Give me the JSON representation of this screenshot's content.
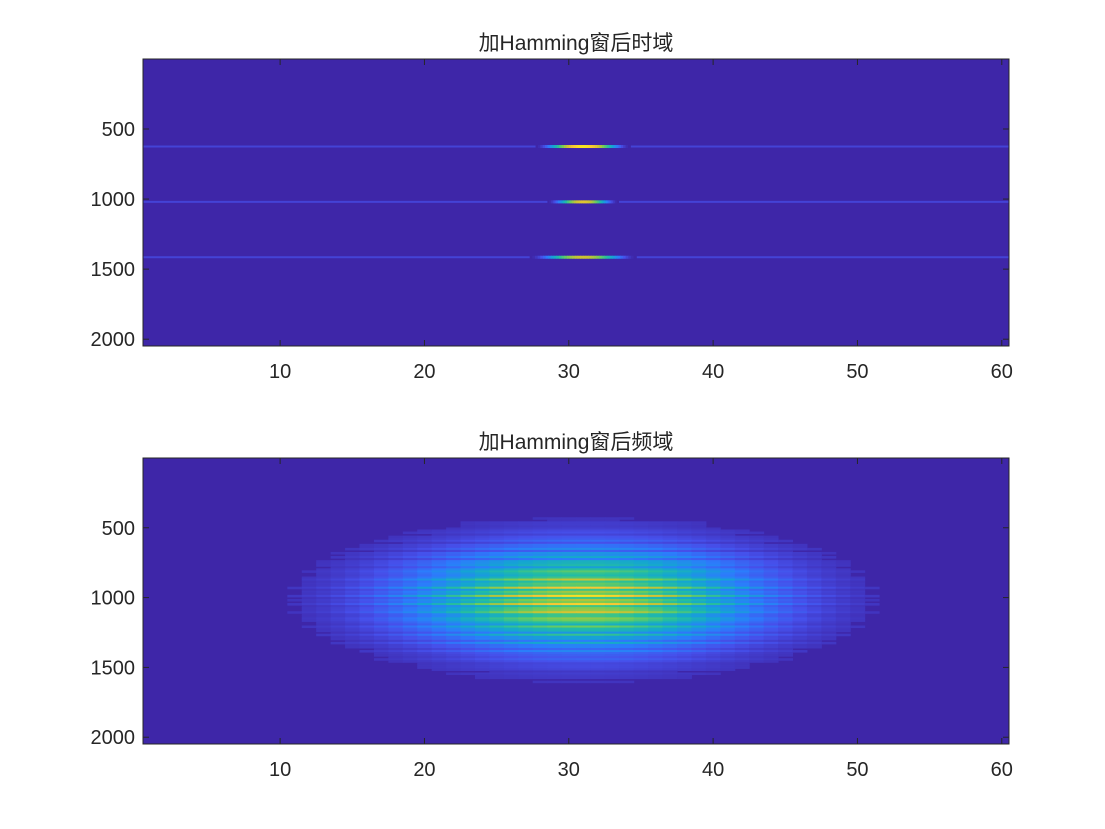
{
  "chart_data": [
    {
      "type": "heatmap",
      "title": "加Hamming窗后时域",
      "xlabel": "",
      "ylabel": "",
      "x_ticks": [
        10,
        20,
        30,
        40,
        50,
        60
      ],
      "y_ticks": [
        500,
        1000,
        1500,
        2000
      ],
      "xlim": [
        0.5,
        60.5
      ],
      "ylim": [
        0.5,
        2048.5
      ],
      "y_reversed": true,
      "colormap": "parula",
      "background_color": "#3e26a8",
      "features": [
        {
          "row": 625,
          "x_center": 31,
          "half_width": 3.2,
          "peak": 1.0
        },
        {
          "row": 1020,
          "x_center": 31,
          "half_width": 2.4,
          "peak": 0.85
        },
        {
          "row": 1415,
          "x_center": 31,
          "half_width": 3.6,
          "peak": 0.8
        }
      ]
    },
    {
      "type": "heatmap",
      "title": "加Hamming窗后频域",
      "xlabel": "",
      "ylabel": "",
      "x_ticks": [
        10,
        20,
        30,
        40,
        50,
        60
      ],
      "y_ticks": [
        500,
        1000,
        1500,
        2000
      ],
      "xlim": [
        0.5,
        60.5
      ],
      "ylim": [
        0.5,
        2048.5
      ],
      "y_reversed": true,
      "colormap": "parula",
      "background_color": "#3e26a8",
      "blob": {
        "x_center": 31,
        "y_center": 1010,
        "x_half_width": 19,
        "y_half_width": 560,
        "peak": 0.95,
        "column_steps": [
          13,
          16,
          19,
          23,
          26,
          30,
          33,
          36,
          40,
          43,
          46,
          50
        ]
      }
    }
  ]
}
